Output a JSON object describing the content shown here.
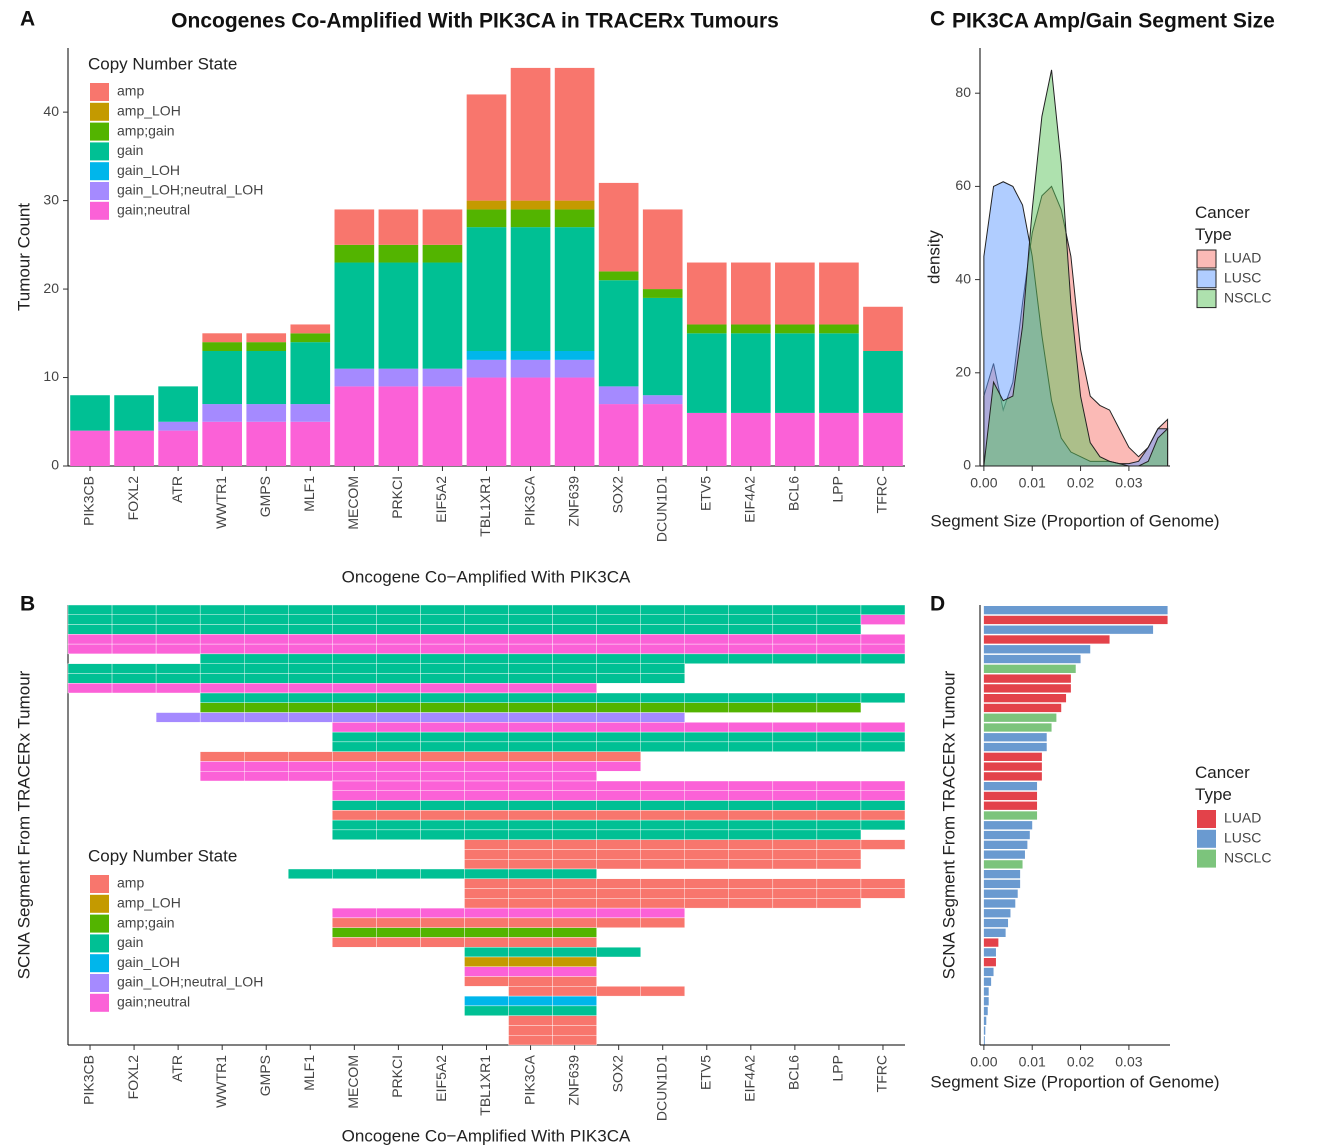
{
  "chart_data": [
    {
      "type": "bar",
      "stacked": true,
      "panel": "A",
      "title": "Oncogenes Co-Amplified With PIK3CA in TRACERx Tumours",
      "xlabel": "Oncogene Co−Amplified With PIK3CA",
      "ylabel": "Tumour Count",
      "legend_title": "Copy Number State",
      "categories": [
        "PIK3CB",
        "FOXL2",
        "ATR",
        "WWTR1",
        "GMPS",
        "MLF1",
        "MECOM",
        "PRKCI",
        "EIF5A2",
        "TBL1XR1",
        "PIK3CA",
        "ZNF639",
        "SOX2",
        "DCUN1D1",
        "ETV5",
        "EIF4A2",
        "BCL6",
        "LPP",
        "TFRC"
      ],
      "ylim": [
        0,
        47.25
      ],
      "yticks": [
        0,
        10,
        20,
        30,
        40
      ],
      "series": [
        {
          "name": "amp",
          "color": "#F8766D",
          "values": [
            0,
            0,
            0,
            1,
            1,
            1,
            4,
            4,
            4,
            12,
            15,
            15,
            10,
            9,
            7,
            7,
            7,
            7,
            5
          ]
        },
        {
          "name": "amp_LOH",
          "color": "#C49A00",
          "values": [
            0,
            0,
            0,
            0,
            0,
            0,
            0,
            0,
            0,
            1,
            1,
            1,
            0,
            0,
            0,
            0,
            0,
            0,
            0
          ]
        },
        {
          "name": "amp;gain",
          "color": "#53B400",
          "values": [
            0,
            0,
            0,
            1,
            1,
            1,
            2,
            2,
            2,
            2,
            2,
            2,
            1,
            1,
            1,
            1,
            1,
            1,
            0
          ]
        },
        {
          "name": "gain",
          "color": "#00C094",
          "values": [
            4,
            4,
            4,
            6,
            6,
            7,
            12,
            12,
            12,
            14,
            14,
            14,
            12,
            11,
            9,
            9,
            9,
            9,
            7
          ]
        },
        {
          "name": "gain_LOH",
          "color": "#00B6EB",
          "values": [
            0,
            0,
            0,
            0,
            0,
            0,
            0,
            0,
            0,
            1,
            1,
            1,
            0,
            0,
            0,
            0,
            0,
            0,
            0
          ]
        },
        {
          "name": "gain_LOH;neutral_LOH",
          "color": "#A58AFF",
          "values": [
            0,
            0,
            1,
            2,
            2,
            2,
            2,
            2,
            2,
            2,
            2,
            2,
            2,
            1,
            0,
            0,
            0,
            0,
            0
          ]
        },
        {
          "name": "gain;neutral",
          "color": "#FB61D7",
          "values": [
            4,
            4,
            4,
            5,
            5,
            5,
            9,
            9,
            9,
            10,
            10,
            10,
            7,
            7,
            6,
            6,
            6,
            6,
            6
          ]
        }
      ]
    },
    {
      "type": "tile",
      "panel": "B",
      "xlabel": "Oncogene Co−Amplified With PIK3CA",
      "ylabel": "SCNA Segment From TRACERx Tumour",
      "legend_title": "Copy Number State",
      "categories": [
        "PIK3CB",
        "FOXL2",
        "ATR",
        "WWTR1",
        "GMPS",
        "MLF1",
        "MECOM",
        "PRKCI",
        "EIF5A2",
        "TBL1XR1",
        "PIK3CA",
        "ZNF639",
        "SOX2",
        "DCUN1D1",
        "ETV5",
        "EIF4A2",
        "BCL6",
        "LPP",
        "TFRC"
      ],
      "series": [
        {
          "name": "amp",
          "color": "#F8766D"
        },
        {
          "name": "amp_LOH",
          "color": "#C49A00"
        },
        {
          "name": "amp;gain",
          "color": "#53B400"
        },
        {
          "name": "gain",
          "color": "#00C094"
        },
        {
          "name": "gain_LOH",
          "color": "#00B6EB"
        },
        {
          "name": "gain_LOH;neutral_LOH",
          "color": "#A58AFF"
        },
        {
          "name": "gain;neutral",
          "color": "#FB61D7"
        }
      ],
      "rows": [
        [
          {
            "state": "gain",
            "from": "PIK3CB",
            "to": "TFRC"
          }
        ],
        [
          {
            "state": "gain",
            "from": "PIK3CB",
            "to": "LPP"
          },
          {
            "state": "gain;neutral",
            "from": "TFRC",
            "to": "TFRC"
          }
        ],
        [
          {
            "state": "gain",
            "from": "PIK3CB",
            "to": "LPP"
          }
        ],
        [
          {
            "state": "gain;neutral",
            "from": "PIK3CB",
            "to": "TFRC"
          }
        ],
        [
          {
            "state": "gain;neutral",
            "from": "PIK3CB",
            "to": "TFRC"
          }
        ],
        [
          {
            "state": "gain",
            "from": "WWTR1",
            "to": "TFRC"
          }
        ],
        [
          {
            "state": "gain",
            "from": "PIK3CB",
            "to": "DCUN1D1"
          }
        ],
        [
          {
            "state": "gain",
            "from": "PIK3CB",
            "to": "DCUN1D1"
          }
        ],
        [
          {
            "state": "gain;neutral",
            "from": "PIK3CB",
            "to": "ZNF639"
          }
        ],
        [
          {
            "state": "gain",
            "from": "WWTR1",
            "to": "TFRC"
          }
        ],
        [
          {
            "state": "amp;gain",
            "from": "WWTR1",
            "to": "LPP"
          }
        ],
        [
          {
            "state": "gain_LOH;neutral_LOH",
            "from": "ATR",
            "to": "DCUN1D1"
          }
        ],
        [
          {
            "state": "gain;neutral",
            "from": "MECOM",
            "to": "TFRC"
          }
        ],
        [
          {
            "state": "gain",
            "from": "MECOM",
            "to": "TFRC"
          }
        ],
        [
          {
            "state": "gain",
            "from": "MECOM",
            "to": "TFRC"
          }
        ],
        [
          {
            "state": "amp",
            "from": "WWTR1",
            "to": "SOX2"
          }
        ],
        [
          {
            "state": "gain;neutral",
            "from": "WWTR1",
            "to": "SOX2"
          }
        ],
        [
          {
            "state": "gain;neutral",
            "from": "WWTR1",
            "to": "ZNF639"
          }
        ],
        [
          {
            "state": "gain;neutral",
            "from": "MECOM",
            "to": "TFRC"
          }
        ],
        [
          {
            "state": "gain;neutral",
            "from": "MECOM",
            "to": "TFRC"
          }
        ],
        [
          {
            "state": "gain",
            "from": "MECOM",
            "to": "TFRC"
          }
        ],
        [
          {
            "state": "amp",
            "from": "MECOM",
            "to": "TFRC"
          }
        ],
        [
          {
            "state": "gain",
            "from": "MECOM",
            "to": "TFRC"
          }
        ],
        [
          {
            "state": "gain",
            "from": "MECOM",
            "to": "LPP"
          }
        ],
        [
          {
            "state": "amp",
            "from": "TBL1XR1",
            "to": "TFRC"
          }
        ],
        [
          {
            "state": "amp",
            "from": "TBL1XR1",
            "to": "LPP"
          }
        ],
        [
          {
            "state": "amp",
            "from": "TBL1XR1",
            "to": "LPP"
          }
        ],
        [
          {
            "state": "gain",
            "from": "MLF1",
            "to": "ZNF639"
          }
        ],
        [
          {
            "state": "amp",
            "from": "TBL1XR1",
            "to": "TFRC"
          }
        ],
        [
          {
            "state": "amp",
            "from": "TBL1XR1",
            "to": "TFRC"
          }
        ],
        [
          {
            "state": "amp",
            "from": "TBL1XR1",
            "to": "LPP"
          }
        ],
        [
          {
            "state": "gain;neutral",
            "from": "MECOM",
            "to": "DCUN1D1"
          }
        ],
        [
          {
            "state": "amp",
            "from": "MECOM",
            "to": "DCUN1D1"
          }
        ],
        [
          {
            "state": "amp;gain",
            "from": "MECOM",
            "to": "ZNF639"
          }
        ],
        [
          {
            "state": "amp",
            "from": "MECOM",
            "to": "ZNF639"
          }
        ],
        [
          {
            "state": "gain",
            "from": "TBL1XR1",
            "to": "SOX2"
          }
        ],
        [
          {
            "state": "amp_LOH",
            "from": "TBL1XR1",
            "to": "ZNF639"
          }
        ],
        [
          {
            "state": "gain;neutral",
            "from": "TBL1XR1",
            "to": "ZNF639"
          }
        ],
        [
          {
            "state": "amp",
            "from": "TBL1XR1",
            "to": "ZNF639"
          }
        ],
        [
          {
            "state": "amp",
            "from": "PIK3CA",
            "to": "DCUN1D1"
          }
        ],
        [
          {
            "state": "gain_LOH",
            "from": "TBL1XR1",
            "to": "ZNF639"
          }
        ],
        [
          {
            "state": "gain",
            "from": "TBL1XR1",
            "to": "ZNF639"
          }
        ],
        [
          {
            "state": "amp",
            "from": "PIK3CA",
            "to": "ZNF639"
          }
        ],
        [
          {
            "state": "amp",
            "from": "PIK3CA",
            "to": "ZNF639"
          }
        ],
        [
          {
            "state": "amp",
            "from": "PIK3CA",
            "to": "ZNF639"
          }
        ]
      ]
    },
    {
      "type": "density",
      "panel": "C",
      "title": "PIK3CA Amp/Gain Segment Size",
      "xlabel": "Segment Size (Proportion of Genome)",
      "ylabel": "density",
      "legend_title": "Cancer Type",
      "x": [
        0,
        0.002,
        0.004,
        0.006,
        0.008,
        0.01,
        0.012,
        0.014,
        0.016,
        0.018,
        0.02,
        0.022,
        0.024,
        0.026,
        0.028,
        0.03,
        0.032,
        0.034,
        0.036,
        0.038
      ],
      "xlim": [
        -0.0008,
        0.0385
      ],
      "xticks": [
        {
          "value": 0,
          "label": "0.00"
        },
        {
          "value": 0.01,
          "label": "0.01"
        },
        {
          "value": 0.02,
          "label": "0.02"
        },
        {
          "value": 0.03,
          "label": "0.03"
        }
      ],
      "ylim": [
        0,
        89.7
      ],
      "yticks": [
        0,
        20,
        40,
        60,
        80
      ],
      "series": [
        {
          "name": "LUAD",
          "color": "#F8766D",
          "values": [
            15,
            22,
            12,
            18,
            35,
            50,
            58,
            60,
            55,
            45,
            25,
            15,
            13,
            12,
            8,
            4,
            2,
            4,
            8,
            10
          ]
        },
        {
          "name": "LUSC",
          "color": "#619CFF",
          "values": [
            45,
            60,
            61,
            60,
            56,
            45,
            28,
            14,
            6,
            3,
            2,
            1,
            1,
            1,
            0.5,
            0.5,
            1,
            4,
            8,
            8
          ]
        },
        {
          "name": "NSCLC",
          "color": "#5EC45E",
          "values": [
            0,
            18,
            14,
            15,
            30,
            55,
            75,
            85,
            65,
            35,
            15,
            5,
            2,
            1,
            0.5,
            0,
            0,
            1,
            6,
            8
          ]
        }
      ]
    },
    {
      "type": "bar",
      "horizontal": true,
      "panel": "D",
      "xlabel": "Segment Size (Proportion of Genome)",
      "ylabel": "SCNA Segment From TRACERx Tumour",
      "legend_title": "Cancer Type",
      "xlim": [
        -0.0008,
        0.0385
      ],
      "xticks": [
        {
          "value": 0,
          "label": "0.00"
        },
        {
          "value": 0.01,
          "label": "0.01"
        },
        {
          "value": 0.02,
          "label": "0.02"
        },
        {
          "value": 0.03,
          "label": "0.03"
        }
      ],
      "series": [
        {
          "name": "LUAD",
          "color": "#E3424A",
          "values": [
            null,
            0.038,
            null,
            0.026,
            null,
            null,
            null,
            0.018,
            0.018,
            0.017,
            0.016,
            null,
            null,
            null,
            null,
            0.012,
            0.012,
            0.012,
            null,
            0.011,
            0.011,
            null,
            null,
            null,
            null,
            null,
            null,
            null,
            null,
            null,
            null,
            null,
            null,
            null,
            0.003,
            null,
            0.0025,
            null,
            null,
            null,
            null,
            null,
            null,
            null,
            null
          ]
        },
        {
          "name": "LUSC",
          "color": "#6A9AD0",
          "values": [
            0.038,
            null,
            0.035,
            null,
            0.022,
            0.02,
            null,
            null,
            null,
            null,
            null,
            null,
            null,
            0.013,
            0.013,
            null,
            null,
            null,
            0.011,
            null,
            null,
            null,
            0.01,
            0.0095,
            0.009,
            0.0085,
            null,
            0.0075,
            0.0075,
            0.007,
            0.0065,
            0.0055,
            0.005,
            0.0045,
            null,
            0.0025,
            null,
            0.002,
            0.0015,
            0.001,
            0.001,
            0.0008,
            0.0005,
            0.0003,
            0.0002
          ]
        },
        {
          "name": "NSCLC",
          "color": "#7CC47C",
          "values": [
            null,
            null,
            null,
            null,
            null,
            null,
            0.019,
            null,
            null,
            null,
            null,
            0.015,
            0.014,
            null,
            null,
            null,
            null,
            null,
            null,
            null,
            null,
            0.011,
            null,
            null,
            null,
            null,
            0.008,
            null,
            null,
            null,
            null,
            null,
            null,
            null,
            null,
            null,
            null,
            null,
            null,
            null,
            null,
            null,
            null,
            null,
            null
          ]
        }
      ]
    }
  ]
}
